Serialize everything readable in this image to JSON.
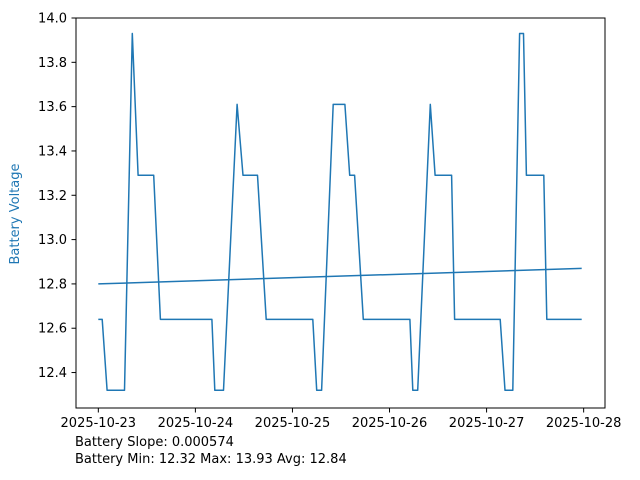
{
  "figure": {
    "background": "#ffffff",
    "accent_color": "#1f77b4",
    "text_color": "#000000",
    "y_axis_label": "Battery Voltage",
    "footer_line1": "Battery Slope: 0.000574",
    "footer_line2": "Battery Min: 12.32 Max: 13.93 Avg: 12.84"
  },
  "chart_data": {
    "type": "line",
    "title": "",
    "xlabel": "",
    "ylabel": "Battery Voltage",
    "x_unit": "days since 2025-10-23 00:00",
    "xlim": [
      -0.23,
      5.22
    ],
    "ylim": [
      12.24,
      14.0
    ],
    "grid": false,
    "legend": false,
    "x_tick_positions": [
      0,
      1,
      2,
      3,
      4,
      5
    ],
    "x_tick_labels": [
      "2025-10-23",
      "2025-10-24",
      "2025-10-25",
      "2025-10-26",
      "2025-10-27",
      "2025-10-28"
    ],
    "y_tick_values": [
      12.4,
      12.6,
      12.8,
      13.0,
      13.2,
      13.4,
      13.6,
      13.8,
      14.0
    ],
    "series": [
      {
        "name": "battery-voltage",
        "color": "#1f77b4",
        "width": 1.5,
        "points": [
          [
            0.0,
            12.64
          ],
          [
            0.04,
            12.64
          ],
          [
            0.09,
            12.32
          ],
          [
            0.27,
            12.32
          ],
          [
            0.35,
            13.93
          ],
          [
            0.41,
            13.29
          ],
          [
            0.57,
            13.29
          ],
          [
            0.64,
            12.64
          ],
          [
            1.17,
            12.64
          ],
          [
            1.2,
            12.32
          ],
          [
            1.29,
            12.32
          ],
          [
            1.43,
            13.61
          ],
          [
            1.49,
            13.29
          ],
          [
            1.64,
            13.29
          ],
          [
            1.73,
            12.64
          ],
          [
            2.21,
            12.64
          ],
          [
            2.25,
            12.32
          ],
          [
            2.3,
            12.32
          ],
          [
            2.42,
            13.61
          ],
          [
            2.54,
            13.61
          ],
          [
            2.59,
            13.29
          ],
          [
            2.64,
            13.29
          ],
          [
            2.73,
            12.64
          ],
          [
            3.21,
            12.64
          ],
          [
            3.24,
            12.32
          ],
          [
            3.29,
            12.32
          ],
          [
            3.42,
            13.61
          ],
          [
            3.47,
            13.29
          ],
          [
            3.64,
            13.29
          ],
          [
            3.67,
            12.64
          ],
          [
            4.14,
            12.64
          ],
          [
            4.19,
            12.32
          ],
          [
            4.27,
            12.32
          ],
          [
            4.34,
            13.93
          ],
          [
            4.38,
            13.93
          ],
          [
            4.41,
            13.29
          ],
          [
            4.59,
            13.29
          ],
          [
            4.62,
            12.64
          ],
          [
            4.98,
            12.64
          ]
        ]
      },
      {
        "name": "battery-trend",
        "color": "#1f77b4",
        "width": 1.5,
        "points": [
          [
            0.0,
            12.8
          ],
          [
            4.98,
            12.87
          ]
        ]
      }
    ],
    "stats": {
      "slope": 0.000574,
      "min": 12.32,
      "max": 13.93,
      "avg": 12.84
    }
  }
}
